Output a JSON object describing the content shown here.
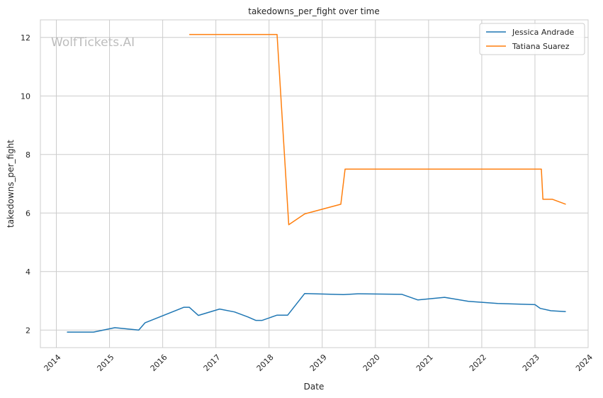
{
  "chart_data": {
    "type": "line",
    "title": "takedowns_per_fight over time",
    "xlabel": "Date",
    "ylabel": "takedowns_per_fight",
    "watermark": "WolfTickets.AI",
    "xlim": [
      2013.7,
      2024.0
    ],
    "ylim": [
      1.4,
      12.6
    ],
    "xticks": [
      2014,
      2015,
      2016,
      2017,
      2018,
      2019,
      2020,
      2021,
      2022,
      2023,
      2024
    ],
    "xtick_labels": [
      "2014",
      "2015",
      "2016",
      "2017",
      "2018",
      "2019",
      "2020",
      "2021",
      "2022",
      "2023",
      "2024"
    ],
    "yticks": [
      2,
      4,
      6,
      8,
      10,
      12
    ],
    "ytick_labels": [
      "2",
      "4",
      "6",
      "8",
      "10",
      "12"
    ],
    "grid": true,
    "legend_position": "top-right",
    "series": [
      {
        "name": "Jessica Andrade",
        "color": "#1f77b4",
        "x": [
          2014.2,
          2014.7,
          2015.1,
          2015.55,
          2015.67,
          2016.4,
          2016.5,
          2016.67,
          2017.07,
          2017.35,
          2017.6,
          2017.75,
          2017.87,
          2018.15,
          2018.35,
          2018.67,
          2019.4,
          2019.67,
          2020.5,
          2020.8,
          2021.3,
          2021.75,
          2022.3,
          2023.0,
          2023.1,
          2023.3,
          2023.58
        ],
        "y": [
          1.93,
          1.93,
          2.08,
          2.0,
          2.25,
          2.78,
          2.78,
          2.5,
          2.72,
          2.62,
          2.45,
          2.33,
          2.33,
          2.51,
          2.51,
          3.25,
          3.21,
          3.24,
          3.22,
          3.03,
          3.12,
          2.98,
          2.91,
          2.87,
          2.74,
          2.66,
          2.63
        ]
      },
      {
        "name": "Tatiana Suarez",
        "color": "#ff7f0e",
        "x": [
          2016.5,
          2018.15,
          2018.37,
          2018.67,
          2019.35,
          2019.43,
          2023.12,
          2023.15,
          2023.33,
          2023.58
        ],
        "y": [
          12.1,
          12.1,
          5.6,
          5.97,
          6.3,
          7.5,
          7.5,
          6.47,
          6.47,
          6.3
        ]
      }
    ]
  }
}
